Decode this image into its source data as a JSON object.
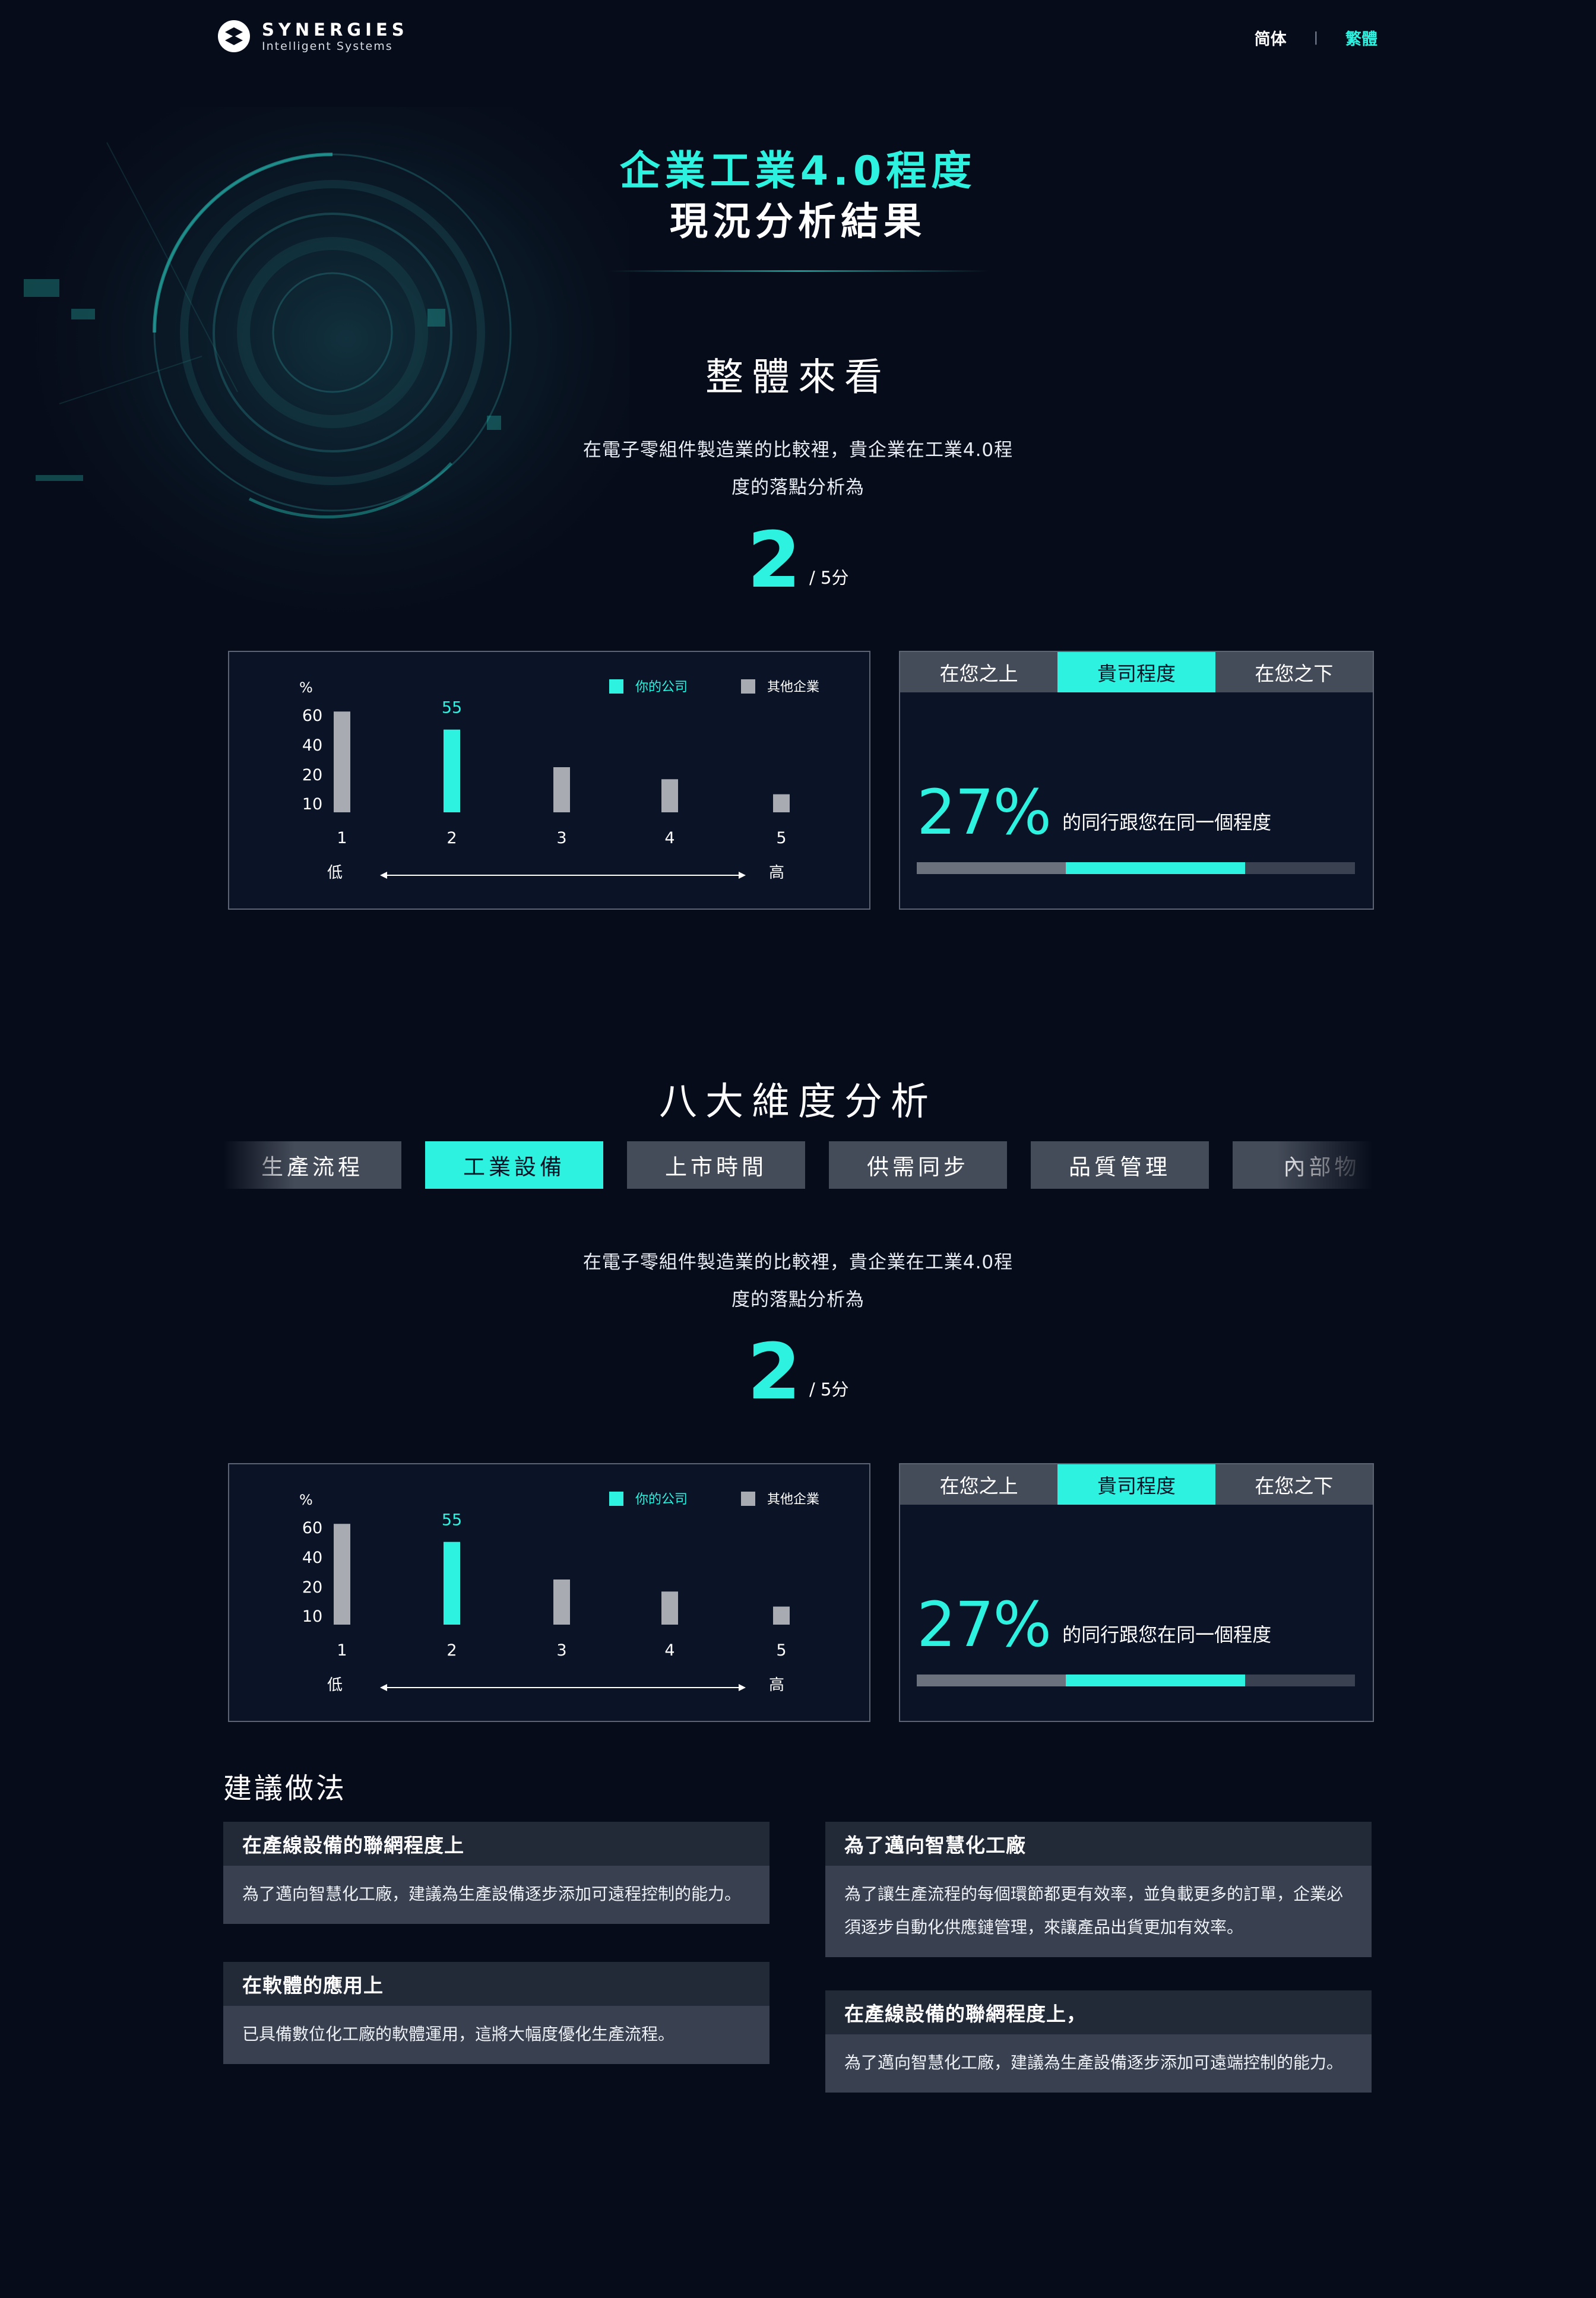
{
  "header": {
    "brand": "SYNERGIES",
    "brand_sub": "Intelligent Systems",
    "lang_sc": "简体",
    "lang_sep": "|",
    "lang_tc": "繁體"
  },
  "hero": {
    "title_line1": "企業工業4.0程度",
    "title_line2": "現況分析結果"
  },
  "overall": {
    "title": "整體來看",
    "desc_line1": "在電子零組件製造業的比較裡，貴企業在工業4.0程",
    "desc_line2": "度的落點分析為",
    "score": "2",
    "score_suffix": "/ 5分",
    "level_tabs": [
      "在您之上",
      "貴司程度",
      "在您之下"
    ],
    "percent": "27%",
    "percent_label": "的同行跟您在同一個程度",
    "bar_fractions": [
      0.34,
      0.41,
      0.25
    ]
  },
  "dimensions": {
    "title": "八大維度分析",
    "tabs": [
      "生產流程",
      "工業設備",
      "上市時間",
      "供需同步",
      "品質管理",
      "內部物"
    ],
    "active_tab": "工業設備",
    "desc_line1": "在電子零組件製造業的比較裡，貴企業在工業4.0程",
    "desc_line2": "度的落點分析為",
    "score": "2",
    "score_suffix": "/ 5分",
    "level_tabs": [
      "在您之上",
      "貴司程度",
      "在您之下"
    ],
    "percent": "27%",
    "percent_label": "的同行跟您在同一個程度",
    "bar_fractions": [
      0.34,
      0.41,
      0.25
    ]
  },
  "chart_data": [
    {
      "type": "bar",
      "categories": [
        "1",
        "2",
        "3",
        "4",
        "5"
      ],
      "series": [
        {
          "name": "你的公司",
          "values": [
            null,
            55,
            null,
            null,
            null
          ]
        },
        {
          "name": "其他企業",
          "values": [
            67,
            null,
            30,
            22,
            12
          ]
        }
      ],
      "yunit": "%",
      "yticks": [
        "10",
        "20",
        "40",
        "60"
      ],
      "data_labels": [
        "55"
      ],
      "axis_low": "低",
      "axis_high": "高",
      "colors": {
        "你的公司": "#2ef2e0",
        "其他企業": "#a9abb3"
      },
      "legend_position": "top-right"
    },
    {
      "type": "bar",
      "categories": [
        "1",
        "2",
        "3",
        "4",
        "5"
      ],
      "series": [
        {
          "name": "你的公司",
          "values": [
            null,
            55,
            null,
            null,
            null
          ]
        },
        {
          "name": "其他企業",
          "values": [
            67,
            null,
            30,
            22,
            12
          ]
        }
      ],
      "yunit": "%",
      "yticks": [
        "10",
        "20",
        "40",
        "60"
      ],
      "data_labels": [
        "55"
      ],
      "axis_low": "低",
      "axis_high": "高",
      "colors": {
        "你的公司": "#2ef2e0",
        "其他企業": "#a9abb3"
      },
      "legend_position": "top-right"
    }
  ],
  "suggestions": {
    "title": "建議做法",
    "cards": [
      {
        "heading": "在產線設備的聯網程度上",
        "body": "為了邁向智慧化工廠，建議為生產設備逐步添加可遠程控制的能力。"
      },
      {
        "heading": "為了邁向智慧化工廠",
        "body": "為了讓生產流程的每個環節都更有效率，並負載更多的訂單，企業必須逐步自動化供應鏈管理，來讓產品出貨更加有效率。"
      },
      {
        "heading": "在軟體的應用上",
        "body": "已具備數位化工廠的軟體運用，這將大幅度優化生產流程。"
      },
      {
        "heading": "在產線設備的聯網程度上，",
        "body": "為了邁向智慧化工廠，建議為生產設備逐步添加可遠端控制的能力。"
      }
    ]
  }
}
